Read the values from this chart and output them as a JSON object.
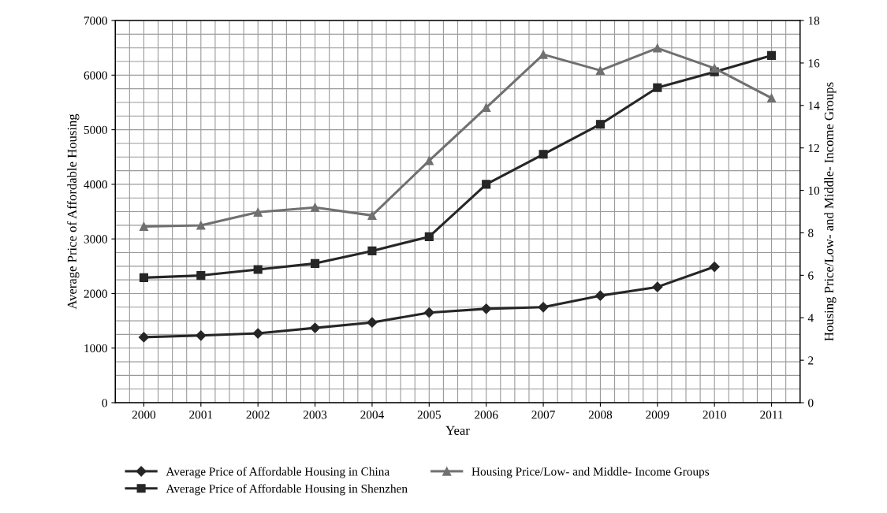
{
  "chart_data": {
    "type": "line",
    "xlabel": "Year",
    "ylabel": "Average Price of Affordable Housing",
    "y2label": "Housing Price/Low- and Middle- Income Groups",
    "categories": [
      "2000",
      "2001",
      "2002",
      "2003",
      "2004",
      "2005",
      "2006",
      "2007",
      "2008",
      "2009",
      "2010",
      "2011"
    ],
    "series": [
      {
        "name": "Average Price of Affordable Housing in China",
        "color": "#262626",
        "marker": "diamond",
        "values": [
          1200,
          1230,
          1270,
          1370,
          1470,
          1650,
          1720,
          1750,
          1960,
          2120,
          2490,
          null
        ]
      },
      {
        "name": "Average Price of Affordable Housing in Shenzhen",
        "color": "#262626",
        "marker": "square",
        "values": [
          2290,
          2330,
          2440,
          2550,
          2780,
          3040,
          4000,
          4550,
          5100,
          5770,
          6060,
          6360
        ]
      },
      {
        "name": "Housing Price/Low- and Middle- Income Groups",
        "color": "#707070",
        "marker": "triangle",
        "axis": "y2",
        "values": [
          8.3,
          8.35,
          8.97,
          9.2,
          8.82,
          11.4,
          13.9,
          16.4,
          15.65,
          16.7,
          15.75,
          14.35
        ]
      }
    ],
    "ylim": [
      0,
      7000
    ],
    "yticks": [
      0,
      1000,
      2000,
      3000,
      4000,
      5000,
      6000,
      7000
    ],
    "y2lim": [
      0,
      18
    ],
    "y2ticks": [
      0,
      2,
      4,
      6,
      8,
      10,
      12,
      14,
      16,
      18
    ],
    "grid": true,
    "legend": "bottom",
    "line_style": "solid"
  }
}
